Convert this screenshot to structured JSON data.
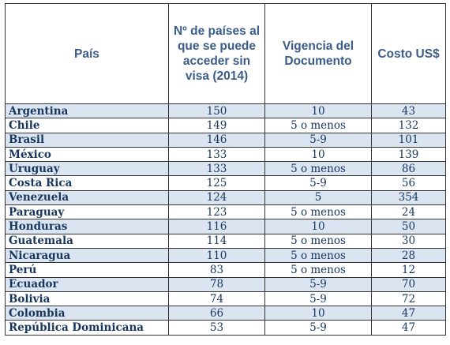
{
  "table": {
    "headers": {
      "pais": "País",
      "paises": "Nº de países al que se puede acceder sin visa (2014)",
      "vigencia": "Vigencia del Documento",
      "costo": "Costo US$"
    },
    "rows": [
      {
        "pais": "Argentina",
        "paises": "150",
        "vigencia": "10",
        "costo": "43"
      },
      {
        "pais": "Chile",
        "paises": "149",
        "vigencia": "5 o menos",
        "costo": "132"
      },
      {
        "pais": "Brasil",
        "paises": "146",
        "vigencia": "5-9",
        "costo": "101"
      },
      {
        "pais": "México",
        "paises": "133",
        "vigencia": "10",
        "costo": "139"
      },
      {
        "pais": "Uruguay",
        "paises": "133",
        "vigencia": "5 o menos",
        "costo": "86"
      },
      {
        "pais": "Costa Rica",
        "paises": "125",
        "vigencia": "5-9",
        "costo": "56"
      },
      {
        "pais": "Venezuela",
        "paises": "124",
        "vigencia": "5",
        "costo": "354"
      },
      {
        "pais": "Paraguay",
        "paises": "123",
        "vigencia": "5 o menos",
        "costo": "24"
      },
      {
        "pais": "Honduras",
        "paises": "116",
        "vigencia": "10",
        "costo": "50"
      },
      {
        "pais": "Guatemala",
        "paises": "114",
        "vigencia": "5 o menos",
        "costo": "30"
      },
      {
        "pais": "Nicaragua",
        "paises": "110",
        "vigencia": "5 o menos",
        "costo": "28"
      },
      {
        "pais": "Perú",
        "paises": "83",
        "vigencia": "5 o menos",
        "costo": "12"
      },
      {
        "pais": "Ecuador",
        "paises": "78",
        "vigencia": "5-9",
        "costo": "70"
      },
      {
        "pais": "Bolivia",
        "paises": "74",
        "vigencia": "5-9",
        "costo": "72"
      },
      {
        "pais": "Colombia",
        "paises": "66",
        "vigencia": "10",
        "costo": "47"
      },
      {
        "pais": "República Dominicana",
        "paises": "53",
        "vigencia": "5-9",
        "costo": "47"
      }
    ]
  },
  "colors": {
    "header_text": "#3b5d8a",
    "body_text": "#17365d",
    "alt_row_fill": "#dbe5f1",
    "border": "#333333"
  }
}
